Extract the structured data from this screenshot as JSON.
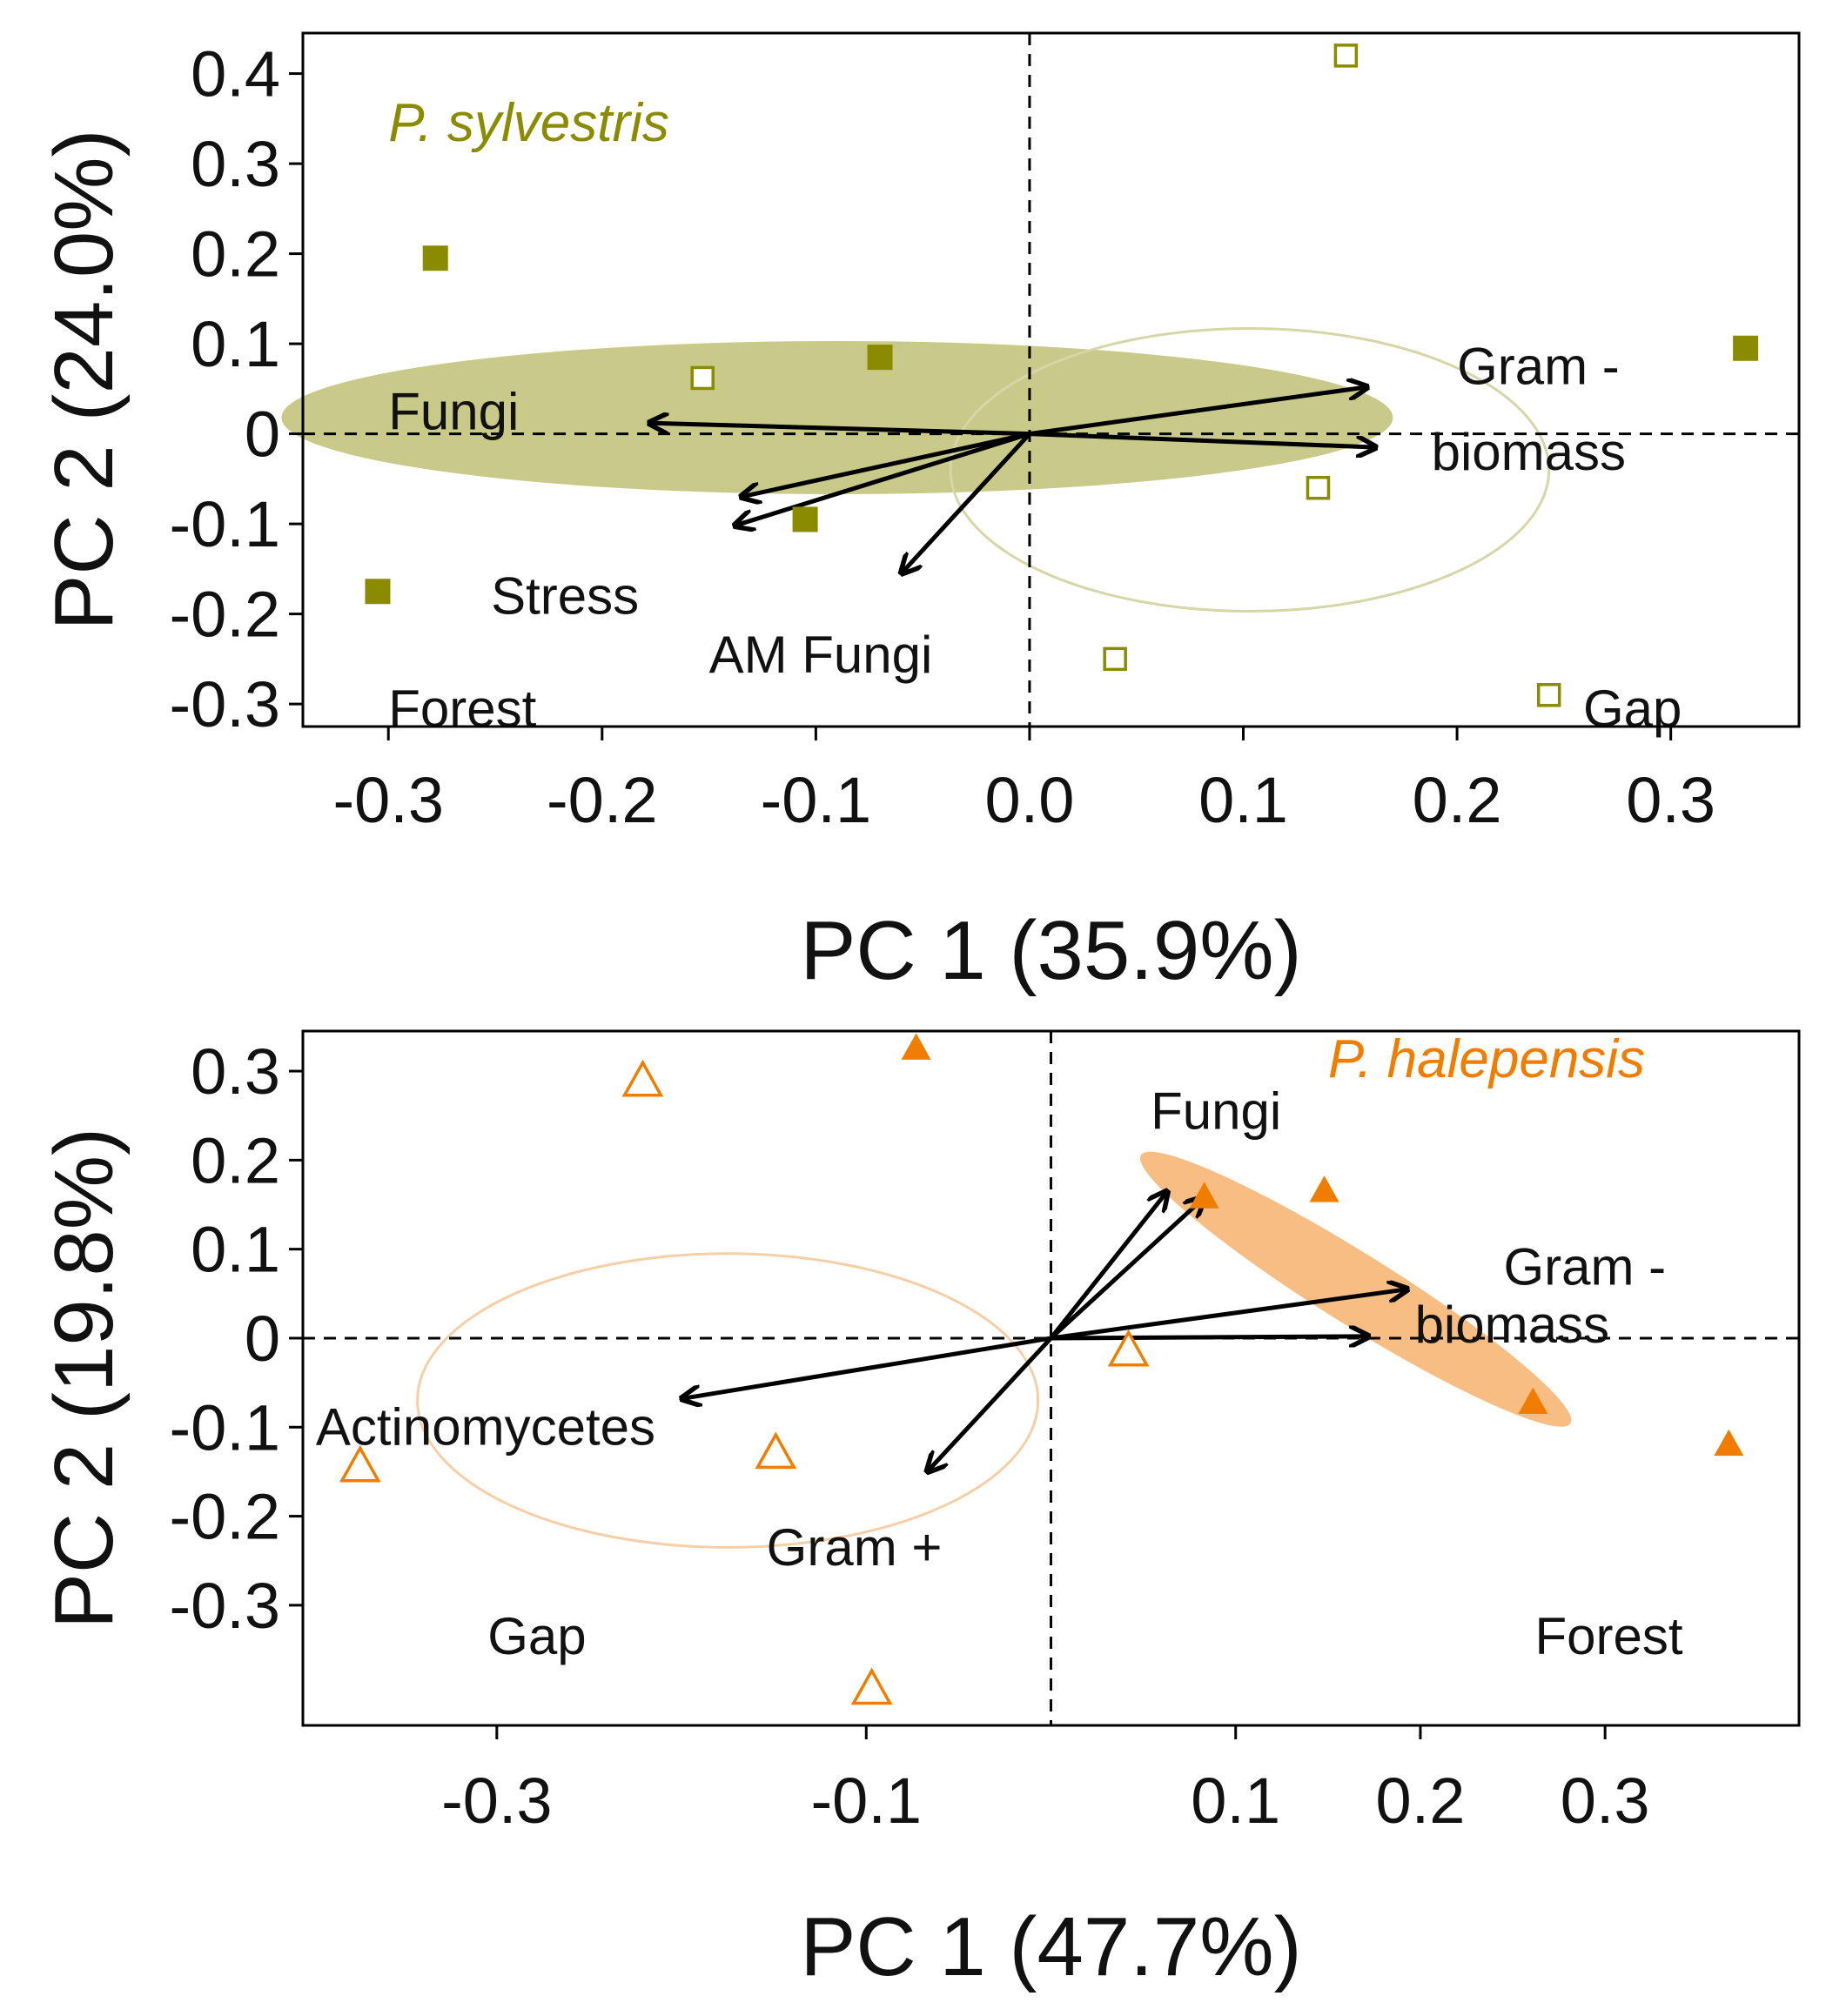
{
  "chart_data": [
    {
      "type": "scatter",
      "title": "P. sylvestris",
      "accent_color": "#8b8b00",
      "ellipse_fill": "#c9c98a",
      "circle_stroke": "#d6d6a8",
      "xlabel": "PC 1 (35.9%)",
      "ylabel": "PC 2 (24.0%)",
      "xlim": [
        -0.34,
        0.36
      ],
      "ylim": [
        -0.325,
        0.445
      ],
      "xticks": [
        -0.3,
        -0.2,
        -0.1,
        0.0,
        0.1,
        0.2,
        0.3
      ],
      "xtick_labels": [
        "-0.3",
        "-0.2",
        "-0.1",
        "0.0",
        "0.1",
        "0.2",
        "0.3"
      ],
      "yticks": [
        0.4,
        0.3,
        0.2,
        0.1,
        0,
        -0.1,
        -0.2,
        -0.3
      ],
      "ytick_labels": [
        "0.4",
        "0.3",
        "0.2",
        "0.1",
        "0",
        "-0.1",
        "-0.2",
        "-0.3"
      ],
      "reference_lines": {
        "x": 0,
        "y": 0
      },
      "series": [
        {
          "name": "Forest",
          "marker": "filled-square",
          "points": [
            [
              -0.278,
              0.195
            ],
            [
              -0.305,
              -0.175
            ],
            [
              -0.07,
              0.085
            ],
            [
              -0.105,
              -0.095
            ],
            [
              0.335,
              0.095
            ]
          ]
        },
        {
          "name": "Gap",
          "marker": "open-square",
          "points": [
            [
              0.148,
              0.42
            ],
            [
              -0.153,
              0.062
            ],
            [
              0.135,
              -0.06
            ],
            [
              0.04,
              -0.25
            ],
            [
              0.243,
              -0.29
            ]
          ]
        }
      ],
      "ellipses": [
        {
          "group": "Forest",
          "style": "filled",
          "center": [
            -0.09,
            0.018
          ],
          "radii": [
            0.26,
            0.085
          ],
          "angle_deg": 0
        },
        {
          "group": "Gap",
          "style": "outline",
          "center": [
            0.103,
            -0.04
          ],
          "radii": [
            0.14,
            0.157
          ],
          "angle_deg": 0
        }
      ],
      "loadings": [
        {
          "dx": 0.158,
          "dy": 0.052
        },
        {
          "dx": 0.162,
          "dy": -0.015
        },
        {
          "dx": -0.178,
          "dy": 0.012
        },
        {
          "dx": -0.135,
          "dy": -0.07
        },
        {
          "dx": -0.138,
          "dy": -0.102
        },
        {
          "dx": -0.06,
          "dy": -0.155
        }
      ],
      "annotations": [
        {
          "text": "Fungi",
          "x": -0.3,
          "y": 0.005
        },
        {
          "text": "Gram -",
          "x": 0.2,
          "y": 0.055
        },
        {
          "text": "biomass",
          "x": 0.188,
          "y": -0.04
        },
        {
          "text": "Stress",
          "x": -0.252,
          "y": -0.2
        },
        {
          "text": "AM Fungi",
          "x": -0.15,
          "y": -0.265
        },
        {
          "text": "Forest",
          "x": -0.3,
          "y": -0.325
        },
        {
          "text": "Gap",
          "x": 0.259,
          "y": -0.325
        },
        {
          "text": "P. sylvestris",
          "x": -0.3,
          "y": 0.325,
          "species": true
        }
      ]
    },
    {
      "type": "scatter",
      "title": "P. halepensis",
      "accent_color": "#f07d00",
      "ellipse_fill": "#f8bd82",
      "circle_stroke": "#f6cfa6",
      "xlabel": "PC 1 (47.7%)",
      "ylabel": "PC 2 (19.8%)",
      "xlim": [
        -0.405,
        0.405
      ],
      "ylim": [
        -0.435,
        0.345
      ],
      "xticks": [
        -0.3,
        -0.1,
        0.1,
        0.2,
        0.3
      ],
      "xtick_labels": [
        "-0.3",
        "-0.1",
        "0.1",
        "0.2",
        "0.3"
      ],
      "yticks": [
        0.3,
        0.2,
        0.1,
        0,
        -0.1,
        -0.2,
        -0.3
      ],
      "ytick_labels": [
        "0.3",
        "0.2",
        "0.1",
        "0",
        "-0.1",
        "-0.2",
        "-0.3"
      ],
      "reference_lines": {
        "x": 0,
        "y": 0
      },
      "series": [
        {
          "name": "Forest",
          "marker": "filled-triangle",
          "points": [
            [
              -0.073,
              0.325
            ],
            [
              0.083,
              0.158
            ],
            [
              0.148,
              0.165
            ],
            [
              0.261,
              -0.073
            ],
            [
              0.367,
              -0.12
            ]
          ]
        },
        {
          "name": "Gap",
          "marker": "open-triangle",
          "points": [
            [
              -0.221,
              0.288
            ],
            [
              0.042,
              -0.015
            ],
            [
              -0.374,
              -0.145
            ],
            [
              -0.149,
              -0.13
            ],
            [
              -0.097,
              -0.395
            ]
          ]
        }
      ],
      "ellipses": [
        {
          "group": "Forest",
          "style": "filled",
          "center": [
            0.165,
            0.055
          ],
          "radii": [
            0.185,
            0.026
          ],
          "angle_deg": 32
        },
        {
          "group": "Gap",
          "style": "outline",
          "center": [
            -0.175,
            -0.07
          ],
          "radii": [
            0.168,
            0.165
          ],
          "angle_deg": 0
        }
      ],
      "loadings": [
        {
          "dx": 0.063,
          "dy": 0.165
        },
        {
          "dx": 0.083,
          "dy": 0.158
        },
        {
          "dx": 0.193,
          "dy": 0.055
        },
        {
          "dx": 0.172,
          "dy": 0.002
        },
        {
          "dx": -0.2,
          "dy": -0.068
        },
        {
          "dx": -0.067,
          "dy": -0.15
        }
      ],
      "annotations": [
        {
          "text": "Fungi",
          "x": 0.054,
          "y": 0.235
        },
        {
          "text": "Gram -",
          "x": 0.245,
          "y": 0.06
        },
        {
          "text": "biomass",
          "x": 0.197,
          "y": -0.005
        },
        {
          "text": "Actinomycetes",
          "x": -0.398,
          "y": -0.12
        },
        {
          "text": "Gram +",
          "x": -0.154,
          "y": -0.255
        },
        {
          "text": "Gap",
          "x": -0.305,
          "y": -0.355
        },
        {
          "text": "Forest",
          "x": 0.262,
          "y": -0.355
        },
        {
          "text": "P. halepensis",
          "x": 0.15,
          "y": 0.293,
          "species": true
        }
      ]
    }
  ]
}
